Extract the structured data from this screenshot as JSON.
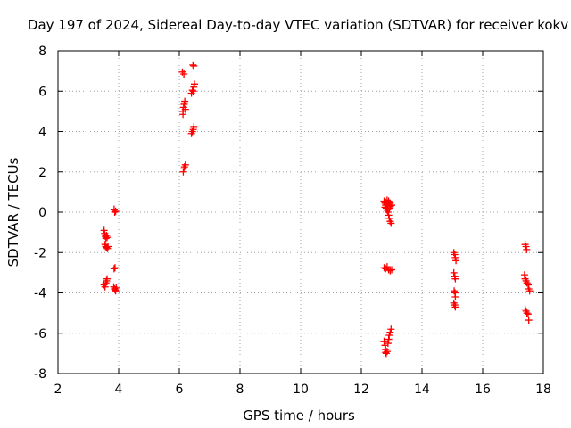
{
  "chart_data": {
    "type": "scatter",
    "title": "Day 197 of 2024, Sidereal Day-to-day VTEC variation (SDTVAR) for receiver kokv",
    "xlabel": "GPS time / hours",
    "ylabel": "SDTVAR / TECUs",
    "xlim": [
      2,
      18
    ],
    "ylim": [
      -8,
      8
    ],
    "xticks": [
      2,
      4,
      6,
      8,
      10,
      12,
      14,
      16,
      18
    ],
    "yticks": [
      -8,
      -6,
      -4,
      -2,
      0,
      2,
      4,
      6,
      8
    ],
    "grid": true,
    "marker": "+",
    "color": "#ff0000",
    "series": [
      {
        "name": "SDTVAR",
        "points": [
          [
            3.52,
            -0.9
          ],
          [
            3.54,
            -1.05
          ],
          [
            3.56,
            -1.2
          ],
          [
            3.58,
            -1.3
          ],
          [
            3.6,
            -1.15
          ],
          [
            3.62,
            -1.25
          ],
          [
            3.55,
            -1.6
          ],
          [
            3.57,
            -1.7
          ],
          [
            3.6,
            -1.75
          ],
          [
            3.63,
            -1.8
          ],
          [
            3.65,
            -1.7
          ],
          [
            3.52,
            -3.6
          ],
          [
            3.55,
            -3.7
          ],
          [
            3.58,
            -3.5
          ],
          [
            3.6,
            -3.4
          ],
          [
            3.62,
            -3.3
          ],
          [
            3.85,
            0.15
          ],
          [
            3.87,
            0.0
          ],
          [
            3.9,
            0.05
          ],
          [
            3.85,
            -2.8
          ],
          [
            3.88,
            -2.75
          ],
          [
            3.84,
            -3.7
          ],
          [
            3.86,
            -3.8
          ],
          [
            3.88,
            -3.85
          ],
          [
            3.9,
            -3.9
          ],
          [
            3.92,
            -3.75
          ],
          [
            6.1,
            6.95
          ],
          [
            6.15,
            6.85
          ],
          [
            6.45,
            7.3
          ],
          [
            6.48,
            7.25
          ],
          [
            6.12,
            5.0
          ],
          [
            6.14,
            5.2
          ],
          [
            6.16,
            5.35
          ],
          [
            6.18,
            5.5
          ],
          [
            6.2,
            5.1
          ],
          [
            6.12,
            4.85
          ],
          [
            6.4,
            5.9
          ],
          [
            6.43,
            6.05
          ],
          [
            6.46,
            6.0
          ],
          [
            6.48,
            6.2
          ],
          [
            6.5,
            6.35
          ],
          [
            6.4,
            3.9
          ],
          [
            6.43,
            4.0
          ],
          [
            6.46,
            4.1
          ],
          [
            6.48,
            4.25
          ],
          [
            6.13,
            2.0
          ],
          [
            6.15,
            2.15
          ],
          [
            6.17,
            2.25
          ],
          [
            6.2,
            2.35
          ],
          [
            12.75,
            0.55
          ],
          [
            12.78,
            0.45
          ],
          [
            12.8,
            0.35
          ],
          [
            12.82,
            0.2
          ],
          [
            12.85,
            0.1
          ],
          [
            12.88,
            0.0
          ],
          [
            12.9,
            -0.15
          ],
          [
            12.92,
            -0.3
          ],
          [
            12.95,
            -0.45
          ],
          [
            12.98,
            -0.55
          ],
          [
            12.8,
            0.5
          ],
          [
            12.85,
            0.6
          ],
          [
            12.9,
            0.55
          ],
          [
            12.95,
            0.45
          ],
          [
            13.0,
            0.35
          ],
          [
            12.88,
            0.3
          ],
          [
            12.92,
            0.2
          ],
          [
            12.96,
            0.3
          ],
          [
            12.84,
            0.4
          ],
          [
            12.78,
            0.25
          ],
          [
            12.75,
            -2.75
          ],
          [
            12.8,
            -2.8
          ],
          [
            12.85,
            -2.7
          ],
          [
            12.9,
            -2.85
          ],
          [
            12.95,
            -2.9
          ],
          [
            13.0,
            -2.85
          ],
          [
            12.75,
            -6.4
          ],
          [
            12.78,
            -6.6
          ],
          [
            12.8,
            -6.8
          ],
          [
            12.82,
            -7.0
          ],
          [
            12.85,
            -6.9
          ],
          [
            12.88,
            -6.5
          ],
          [
            12.9,
            -6.3
          ],
          [
            12.92,
            -6.1
          ],
          [
            12.95,
            -5.95
          ],
          [
            12.98,
            -5.8
          ],
          [
            12.8,
            -6.95
          ],
          [
            15.05,
            -2.0
          ],
          [
            15.08,
            -2.1
          ],
          [
            15.1,
            -2.25
          ],
          [
            15.12,
            -2.4
          ],
          [
            15.05,
            -3.0
          ],
          [
            15.08,
            -3.2
          ],
          [
            15.1,
            -3.3
          ],
          [
            15.06,
            -3.9
          ],
          [
            15.09,
            -4.0
          ],
          [
            15.1,
            -4.2
          ],
          [
            15.05,
            -4.5
          ],
          [
            15.08,
            -4.6
          ],
          [
            15.1,
            -4.7
          ],
          [
            17.4,
            -1.6
          ],
          [
            17.43,
            -1.7
          ],
          [
            17.45,
            -1.85
          ],
          [
            17.38,
            -3.1
          ],
          [
            17.4,
            -3.3
          ],
          [
            17.43,
            -3.4
          ],
          [
            17.46,
            -3.5
          ],
          [
            17.5,
            -3.6
          ],
          [
            17.52,
            -3.8
          ],
          [
            17.55,
            -3.9
          ],
          [
            17.4,
            -4.8
          ],
          [
            17.43,
            -4.9
          ],
          [
            17.46,
            -5.0
          ],
          [
            17.5,
            -5.05
          ],
          [
            17.52,
            -5.35
          ]
        ]
      }
    ]
  }
}
